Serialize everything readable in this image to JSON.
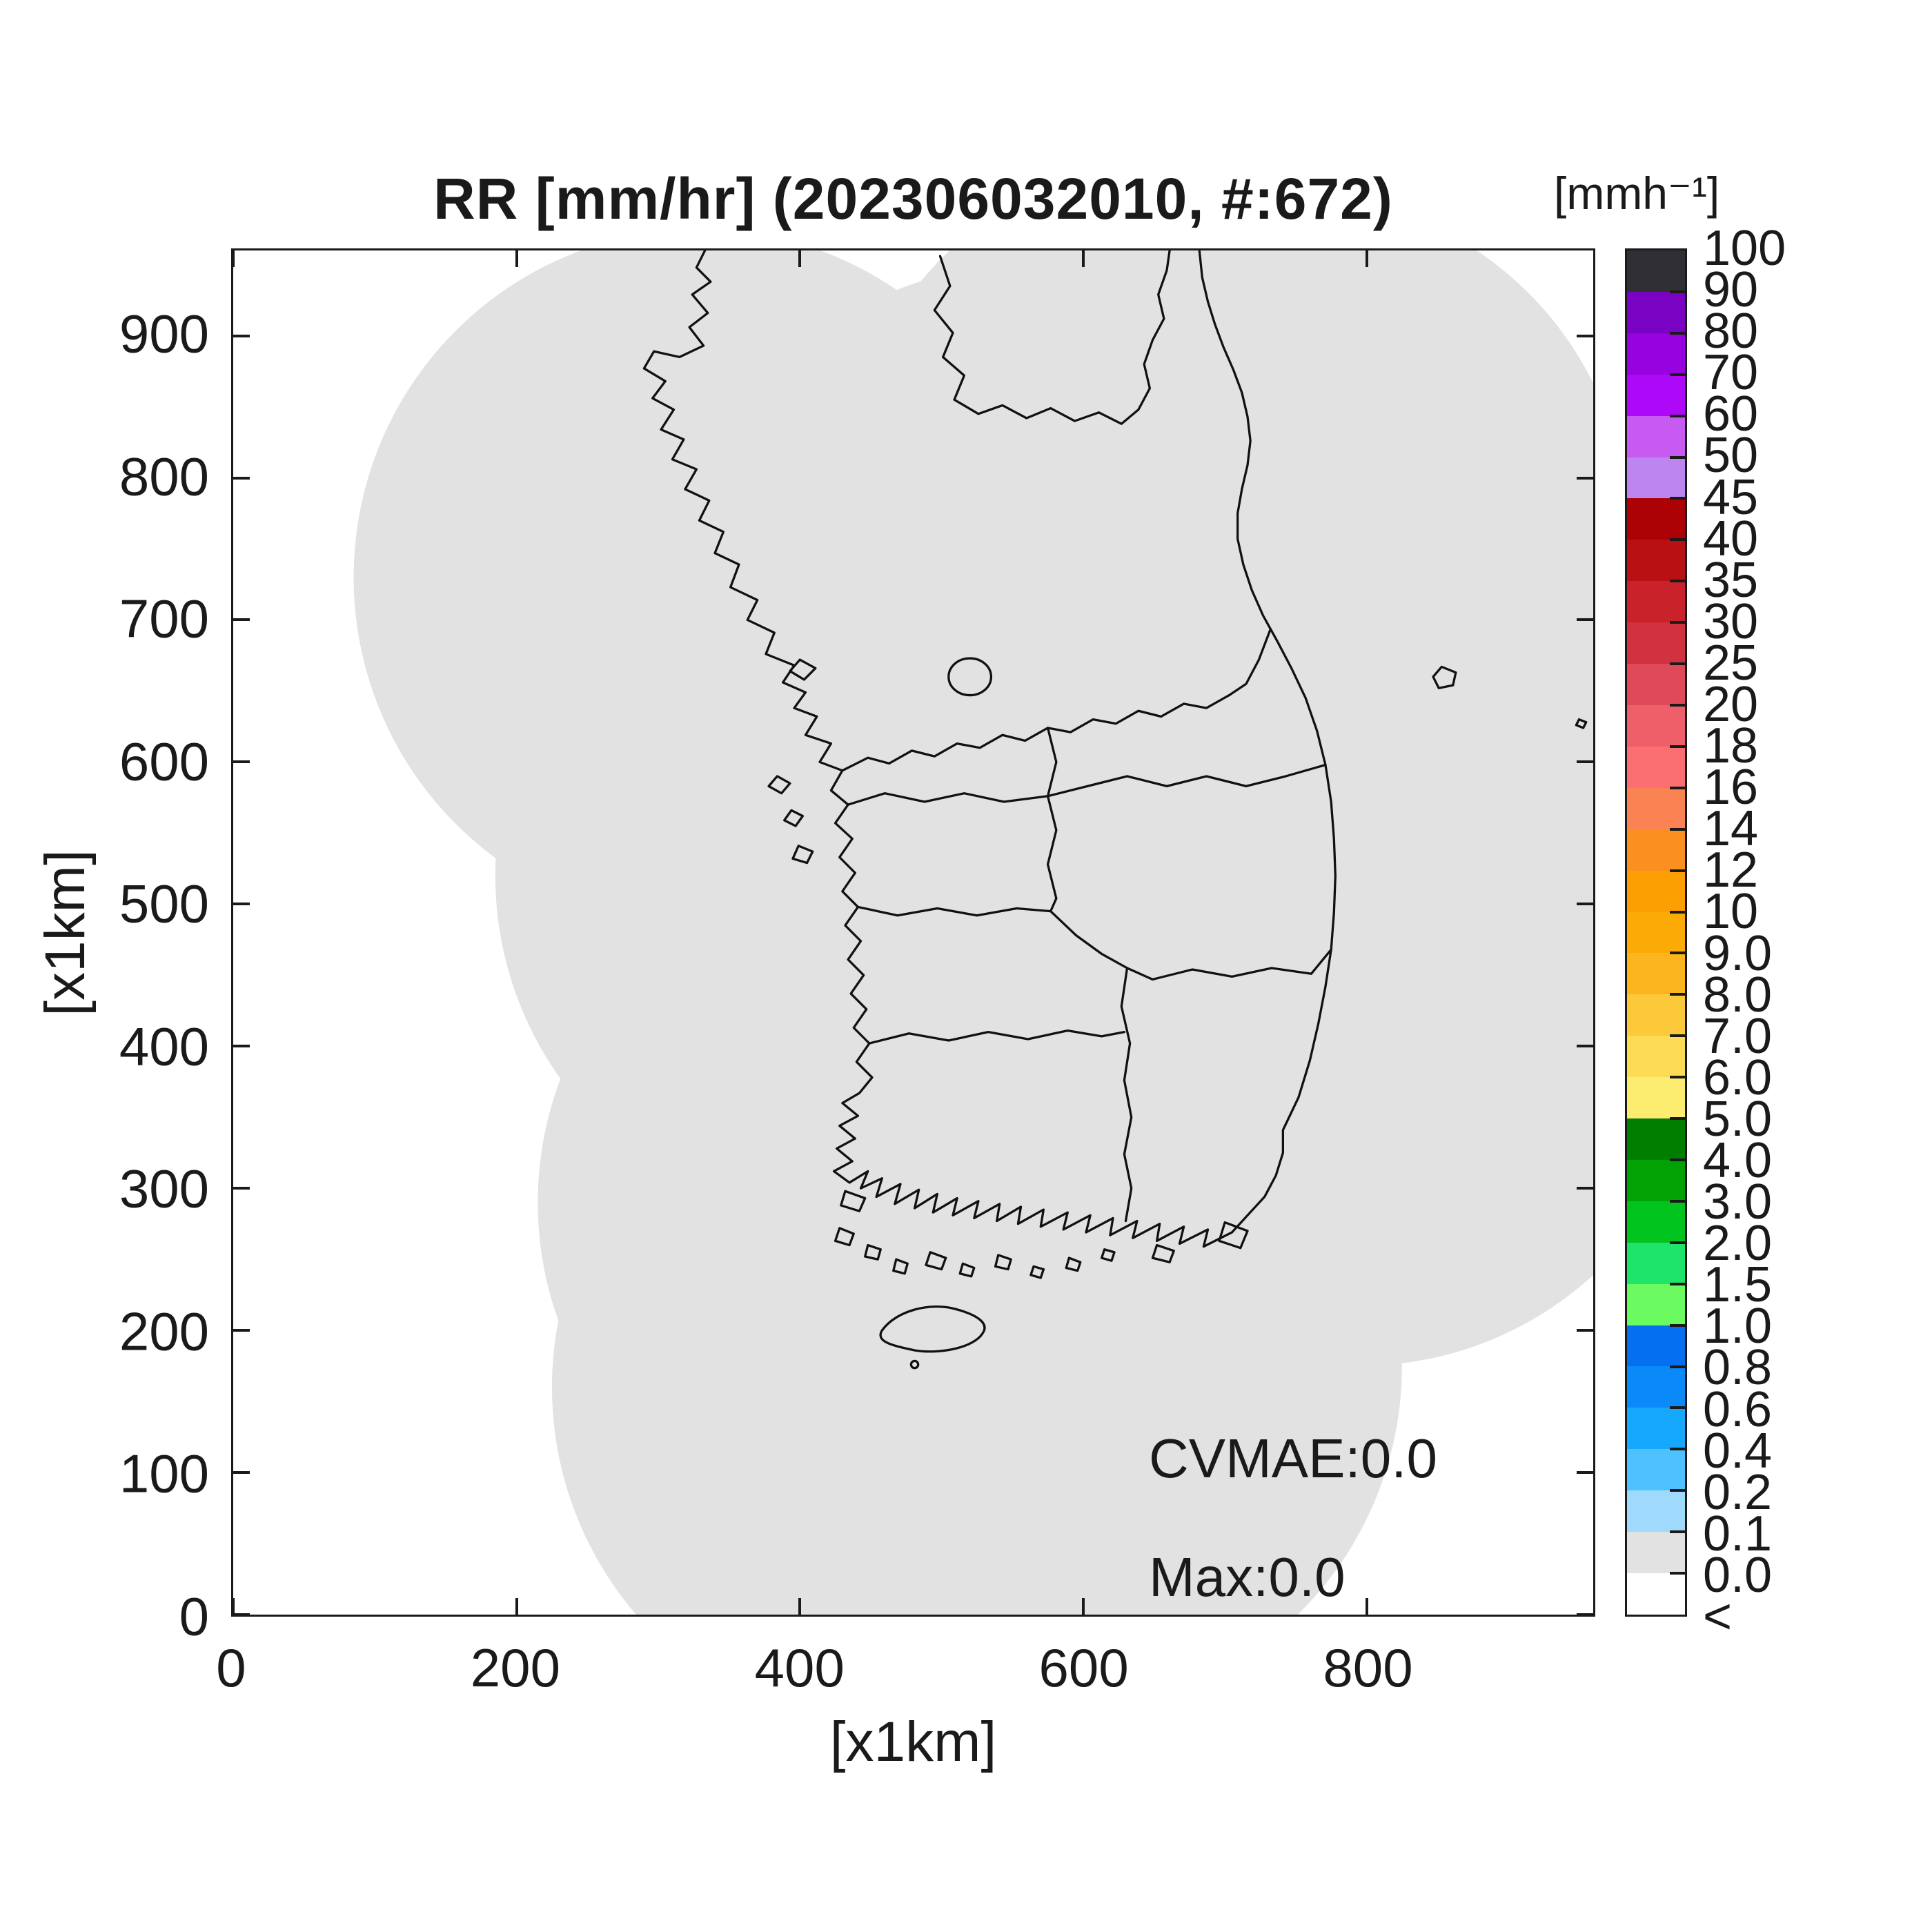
{
  "title": "RR [mm/hr] (202306032010, #:672)",
  "axes": {
    "xlabel": "[x1km]",
    "ylabel": "[x1km]",
    "xlim": [
      0,
      960
    ],
    "ylim": [
      0,
      960
    ],
    "xticks": [
      0,
      200,
      400,
      600,
      800
    ],
    "yticks": [
      0,
      100,
      200,
      300,
      400,
      500,
      600,
      700,
      800,
      900
    ]
  },
  "colorbar": {
    "unit_label": "[mmh⁻¹]",
    "boundary_labels_top_to_bottom": [
      "100",
      "90",
      "80",
      "70",
      "60",
      "50",
      "45",
      "40",
      "35",
      "30",
      "25",
      "20",
      "18",
      "16",
      "14",
      "12",
      "10",
      "9.0",
      "8.0",
      "7.0",
      "6.0",
      "5.0",
      "4.0",
      "3.0",
      "2.0",
      "1.5",
      "1.0",
      "0.8",
      "0.6",
      "0.4",
      "0.2",
      "0.1",
      "0.0",
      "<"
    ],
    "segment_colors_top_to_bottom": [
      "#302f33",
      "#7a02c2",
      "#9603e0",
      "#ae08f8",
      "#c75af0",
      "#bd85f0",
      "#ad0205",
      "#b91014",
      "#c9222a",
      "#d2313f",
      "#e04a58",
      "#ef5f6a",
      "#fb6f72",
      "#fb8253",
      "#fb8f1f",
      "#fc9f02",
      "#fcaa06",
      "#fcb51c",
      "#fcc93a",
      "#fcdc55",
      "#fcec70",
      "#007e00",
      "#00a204",
      "#02c41e",
      "#1ee46a",
      "#6bfa60",
      "#0470f0",
      "#0a8af8",
      "#16a8fc",
      "#4ec2fe",
      "#9fdafc",
      "#e2e2e2",
      "#ffffff"
    ]
  },
  "annotations": {
    "cvmae": "CVMAE:0.0",
    "max": "Max:0.0"
  },
  "map": {
    "coverage_fill": "#e2e2e2",
    "outline_color": "#111111",
    "background": "#ffffff"
  },
  "chart_data": {
    "type": "heatmap",
    "title": "RR [mm/hr] (202306032010, #:672)",
    "variable": "RR",
    "units": "mm/hr",
    "timestamp_label": "202306032010",
    "count_label": "#:672",
    "xlabel": "[x1km]",
    "ylabel": "[x1km]",
    "xlim": [
      0,
      960
    ],
    "ylim": [
      0,
      960
    ],
    "xticks": [
      0,
      200,
      400,
      600,
      800
    ],
    "yticks": [
      0,
      100,
      200,
      300,
      400,
      500,
      600,
      700,
      800,
      900
    ],
    "colorbar_unit": "[mmh⁻¹]",
    "colorbar_levels_bottom_to_top": [
      "<",
      "0.0",
      "0.1",
      "0.2",
      "0.4",
      "0.6",
      "0.8",
      "1.0",
      "1.5",
      "2.0",
      "3.0",
      "4.0",
      "5.0",
      "6.0",
      "7.0",
      "8.0",
      "9.0",
      "10",
      "12",
      "14",
      "16",
      "18",
      "20",
      "25",
      "30",
      "35",
      "40",
      "45",
      "50",
      "60",
      "70",
      "80",
      "90",
      "100"
    ],
    "colorbar_colors_bottom_to_top": [
      "#ffffff",
      "#e2e2e2",
      "#9fdafc",
      "#4ec2fe",
      "#16a8fc",
      "#0a8af8",
      "#0470f0",
      "#6bfa60",
      "#1ee46a",
      "#02c41e",
      "#00a204",
      "#007e00",
      "#fcec70",
      "#fcdc55",
      "#fcc93a",
      "#fcb51c",
      "#fcaa06",
      "#fc9f02",
      "#fb8f1f",
      "#fb8253",
      "#fb6f72",
      "#ef5f6a",
      "#e04a58",
      "#d2313f",
      "#c9222a",
      "#b91014",
      "#ad0205",
      "#bd85f0",
      "#c75af0",
      "#ae08f8",
      "#9603e0",
      "#7a02c2",
      "#302f33"
    ],
    "statistics": {
      "CVMAE": 0.0,
      "Max": 0.0
    },
    "field_summary": "Uniform 0.0 mm/hr rainfall over entire radar coverage composite (gray area); no precipitation echoes",
    "legend_position": "right-colorbar",
    "grid": false
  }
}
